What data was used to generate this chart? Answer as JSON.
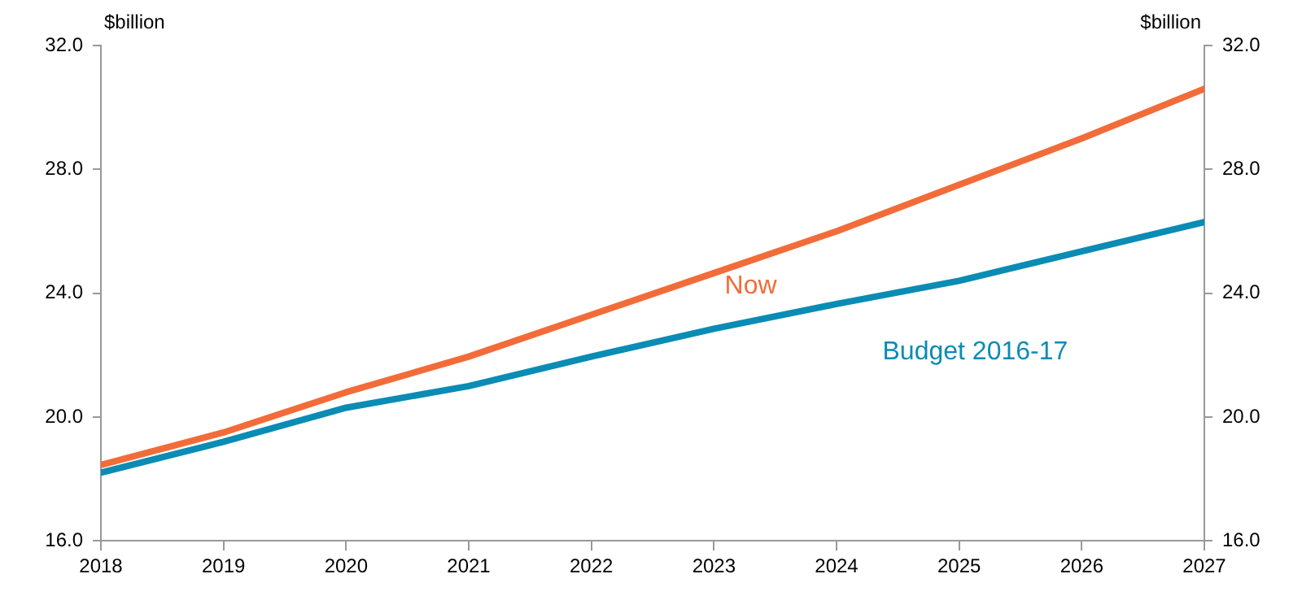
{
  "chart_data": {
    "type": "line",
    "ylabel": "$billion",
    "y2label": "$billion",
    "x": [
      2018,
      2019,
      2020,
      2021,
      2022,
      2023,
      2024,
      2025,
      2026,
      2027
    ],
    "xlim": [
      2018,
      2027
    ],
    "xticks": [
      2018,
      2019,
      2020,
      2021,
      2022,
      2023,
      2024,
      2025,
      2026,
      2027
    ],
    "ylim": [
      16,
      32
    ],
    "yticks": [
      {
        "value": 16,
        "label": "16.0"
      },
      {
        "value": 20,
        "label": "20.0"
      },
      {
        "value": 24,
        "label": "24.0"
      },
      {
        "value": 28,
        "label": "28.0"
      },
      {
        "value": 32,
        "label": "32.0"
      }
    ],
    "y2lim": [
      16,
      32
    ],
    "y2ticks": [
      {
        "value": 16,
        "label": "16.0"
      },
      {
        "value": 20,
        "label": "20.0"
      },
      {
        "value": 24,
        "label": "24.0"
      },
      {
        "value": 28,
        "label": "28.0"
      },
      {
        "value": 32,
        "label": "32.0"
      }
    ],
    "series": [
      {
        "name": "Now",
        "color": "#f26c3a",
        "values": [
          18.45,
          19.5,
          20.8,
          21.95,
          23.3,
          24.65,
          26.0,
          27.5,
          29.0,
          30.6
        ]
      },
      {
        "name": "Budget 2016-17",
        "color": "#0a8cb4",
        "values": [
          18.2,
          19.2,
          20.3,
          21.0,
          21.95,
          22.85,
          23.65,
          24.4,
          25.35,
          26.3
        ]
      }
    ],
    "grid": false,
    "legend": false,
    "marker": "none",
    "line_style": "solid"
  }
}
